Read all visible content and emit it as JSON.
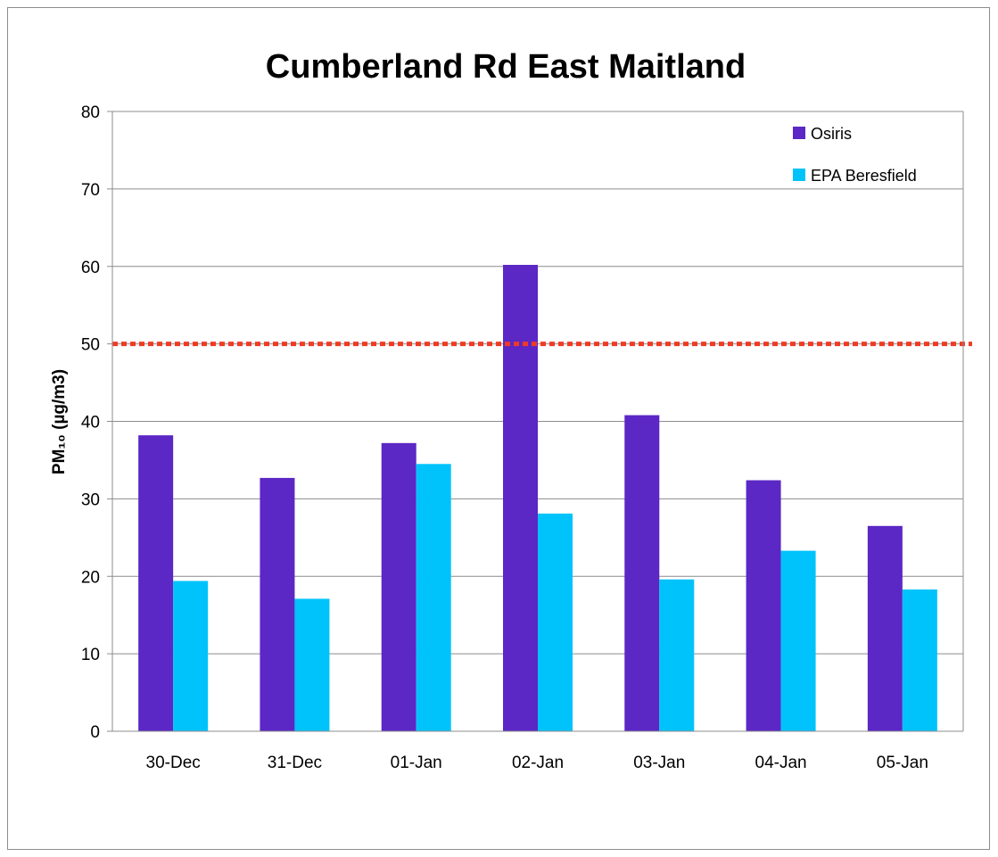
{
  "chart_data": {
    "type": "bar",
    "title": "Cumberland Rd East Maitland",
    "xlabel": "",
    "ylabel": "PM₁₀ (µg/m3)",
    "ylim": [
      0,
      80
    ],
    "yticks": [
      "0",
      "10",
      "20",
      "30",
      "40",
      "50",
      "60",
      "70",
      "80"
    ],
    "grid": true,
    "legend_position": "top-right",
    "categories": [
      "30-Dec",
      "31-Dec",
      "01-Jan",
      "02-Jan",
      "03-Jan",
      "04-Jan",
      "05-Jan"
    ],
    "series": [
      {
        "name": "Osiris",
        "color": "#5b27c5",
        "values": [
          38.2,
          32.7,
          37.2,
          60.2,
          40.8,
          32.4,
          26.5
        ]
      },
      {
        "name": "EPA Beresfield",
        "color": "#00c3fb",
        "values": [
          19.4,
          17.1,
          34.5,
          28.1,
          19.6,
          23.3,
          18.3
        ]
      }
    ],
    "reference_line": {
      "value": 50,
      "color": "#ef3b24",
      "style": "dotted"
    }
  }
}
